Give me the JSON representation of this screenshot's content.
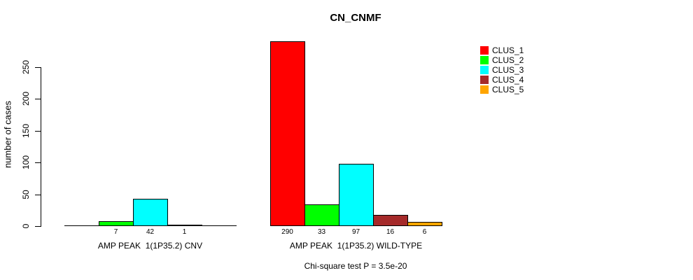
{
  "title": "CN_CNMF",
  "y_axis": {
    "label": "number of cases"
  },
  "footnote": "Chi-square test P = 3.5e-20",
  "legend": {
    "entries": [
      {
        "label": "CLUS_1",
        "color": "#FF0000"
      },
      {
        "label": "CLUS_2",
        "color": "#00FF00"
      },
      {
        "label": "CLUS_3",
        "color": "#00FFFF"
      },
      {
        "label": "CLUS_4",
        "color": "#A52A2A"
      },
      {
        "label": "CLUS_5",
        "color": "#FFA500"
      }
    ]
  },
  "chart_data": {
    "type": "bar",
    "title": "CN_CNMF",
    "ylabel": "number of cases",
    "ylim": [
      0,
      250
    ],
    "yticks": [
      0,
      50,
      100,
      150,
      200,
      250
    ],
    "grid": false,
    "legend_position": "top-right",
    "series": [
      "CLUS_1",
      "CLUS_2",
      "CLUS_3",
      "CLUS_4",
      "CLUS_5"
    ],
    "series_colors": [
      "#FF0000",
      "#00FF00",
      "#00FFFF",
      "#A52A2A",
      "#FFA500"
    ],
    "groups": [
      {
        "label": "AMP PEAK  1(1P35.2) CNV",
        "values": [
          0,
          7,
          42,
          1,
          0
        ]
      },
      {
        "label": "AMP PEAK  1(1P35.2) WILD-TYPE",
        "values": [
          290,
          33,
          97,
          16,
          6
        ]
      }
    ],
    "annotation": "Chi-square test P = 3.5e-20"
  }
}
